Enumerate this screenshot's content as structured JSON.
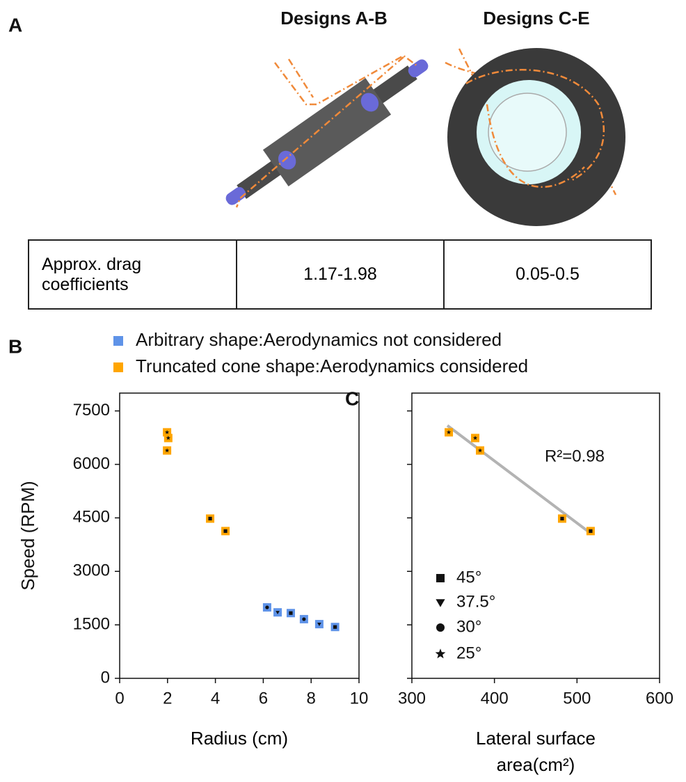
{
  "panel_a": {
    "label": "A",
    "designs": [
      "Designs A-B",
      "Designs C-E"
    ],
    "table": [
      [
        "Approx. drag coefficients",
        "1.17-1.98",
        "0.05-0.5"
      ]
    ]
  },
  "chart_data": [
    {
      "type": "scatter",
      "panel_label": "B",
      "xlabel": "Radius (cm)",
      "ylabel": "Speed (RPM)",
      "xlim": [
        0,
        10
      ],
      "xticks": [
        0,
        2,
        4,
        6,
        8,
        10
      ],
      "ylim": [
        0,
        8000
      ],
      "yticks": [
        0,
        1500,
        3000,
        4500,
        6000,
        7500
      ],
      "ytick_labels": true,
      "series": [
        {
          "name": "Arbitrary shape:Aerodynamics not considered",
          "color": "#5f93e8",
          "x": [
            6.16,
            6.6,
            7.15,
            7.7,
            8.34,
            9.0
          ],
          "values": [
            1990,
            1850,
            1830,
            1660,
            1520,
            1440
          ],
          "marker": [
            "circle",
            "triangle",
            "square",
            "circle",
            "triangle",
            "square"
          ]
        },
        {
          "name": "Truncated cone shape:Aerodynamics considered",
          "color": "#ffa500",
          "x": [
            1.98,
            2.03,
            1.98,
            3.78,
            4.42
          ],
          "values": [
            6900,
            6740,
            6390,
            4480,
            4130
          ],
          "marker": [
            "star",
            "star",
            "star",
            "square",
            "square"
          ]
        }
      ]
    },
    {
      "type": "scatter",
      "panel_label": "C",
      "xlabel": "Lateral surface area(cm²)",
      "xlim": [
        300,
        600
      ],
      "xticks": [
        300,
        400,
        500,
        600
      ],
      "ylim": [
        0,
        8000
      ],
      "yticks": [
        0,
        1500,
        3000,
        4500,
        6000,
        7500
      ],
      "ytick_labels": false,
      "annotation": "R²=0.98",
      "fit": {
        "color": "#b3b3b3",
        "x": [
          343,
          517
        ],
        "y": [
          7090,
          4060
        ]
      },
      "series": [
        {
          "color": "#ffa500",
          "x": [
            344.7,
            376.7,
            382.6,
            482,
            516.5
          ],
          "values": [
            6900,
            6740,
            6390,
            4480,
            4130
          ],
          "marker": [
            "star",
            "star",
            "star",
            "square",
            "square"
          ]
        }
      ],
      "marker_legend": [
        {
          "shape": "square",
          "label": "45°"
        },
        {
          "shape": "triangle",
          "label": "37.5°"
        },
        {
          "shape": "circle",
          "label": "30°"
        },
        {
          "shape": "star",
          "label": "25°"
        }
      ]
    }
  ]
}
